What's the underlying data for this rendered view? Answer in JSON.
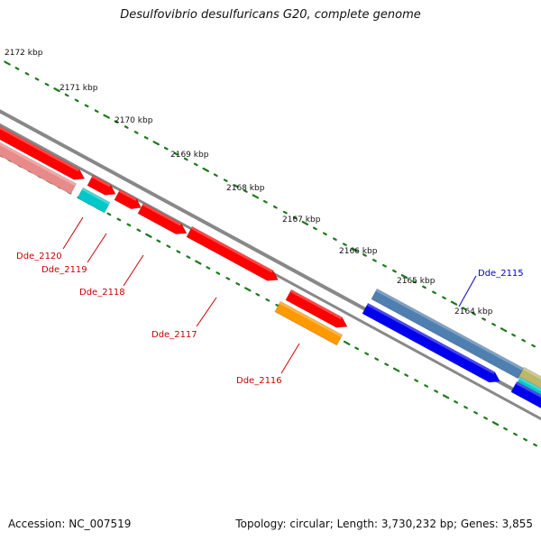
{
  "title": "Desulfovibrio desulfuricans G20, complete genome",
  "footer": {
    "accession": "Accession: NC_007519",
    "summary": "Topology: circular; Length: 3,730,232 bp; Genes: 3,855"
  },
  "scale_labels": [
    "2172 kbp",
    "2171 kbp",
    "2170 kbp",
    "2169 kbp",
    "2168 kbp",
    "2167 kbp",
    "2166 kbp",
    "2165 kbp",
    "2164 kbp"
  ],
  "gene_labels": {
    "dde_2120": "Dde_2120",
    "dde_2119": "Dde_2119",
    "dde_2118": "Dde_2118",
    "dde_2117": "Dde_2117",
    "dde_2116": "Dde_2116",
    "dde_2115": "Dde_2115"
  },
  "colors": {
    "backbone": "#888888",
    "tick": "#1a7a1a",
    "gene_red": "#ff0000",
    "gene_pink": "#e88a8a",
    "gene_cyan": "#00c8c8",
    "gene_orange": "#ff9900",
    "gene_blue": "#0000ee",
    "gene_steelblue": "#4f7fb0",
    "gene_khaki": "#bdb76b",
    "label_red": "#cc0000",
    "label_blue": "#0000cc"
  }
}
